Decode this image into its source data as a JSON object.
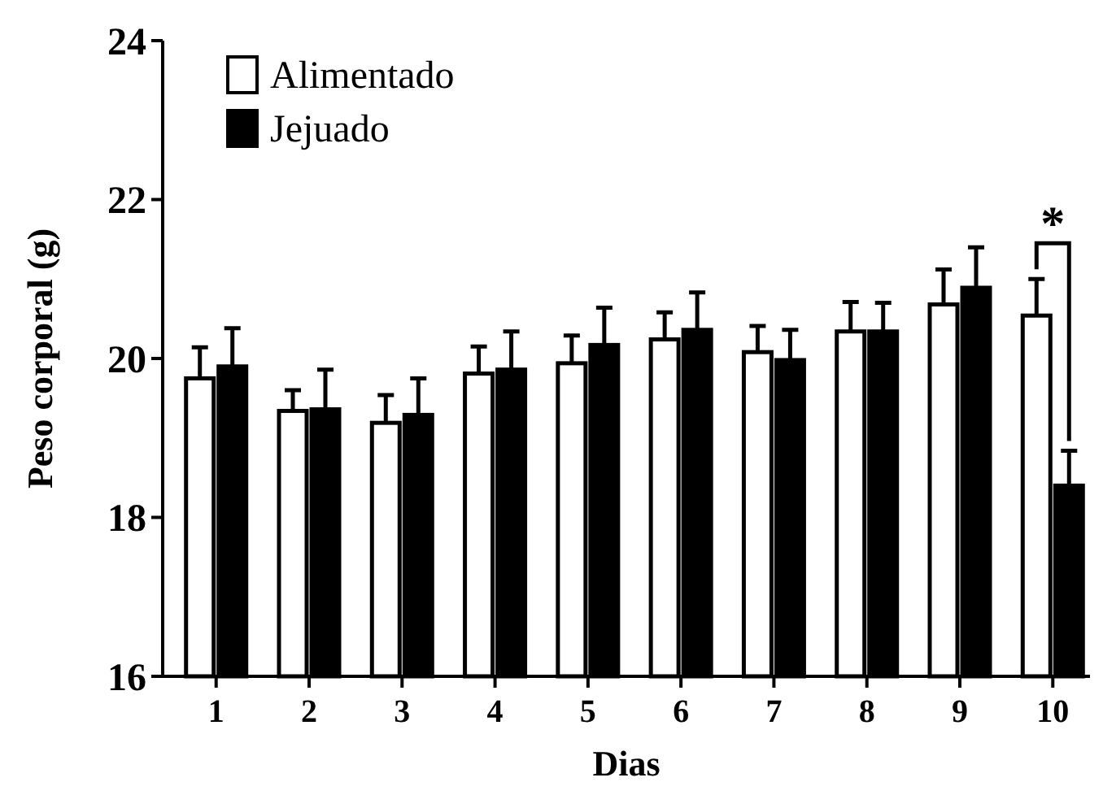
{
  "chart_data": {
    "type": "bar",
    "xlabel": "Dias",
    "ylabel": "Peso corporal (g)",
    "categories": [
      "1",
      "2",
      "3",
      "4",
      "5",
      "6",
      "7",
      "8",
      "9",
      "10"
    ],
    "series": [
      {
        "name": "Alimentado",
        "color": "#ffffff",
        "values": [
          19.75,
          19.34,
          19.19,
          19.81,
          19.94,
          20.24,
          20.08,
          20.34,
          20.68,
          20.54
        ],
        "errors": [
          [
            19.75,
            20.14
          ],
          [
            19.34,
            19.6
          ],
          [
            19.19,
            19.54
          ],
          [
            19.81,
            20.15
          ],
          [
            19.94,
            20.29
          ],
          [
            20.24,
            20.58
          ],
          [
            20.08,
            20.41
          ],
          [
            20.34,
            20.71
          ],
          [
            20.68,
            21.12
          ],
          [
            20.54,
            21.0
          ]
        ]
      },
      {
        "name": "Jejuado",
        "color": "#000000",
        "values": [
          19.9,
          19.36,
          19.29,
          19.86,
          20.17,
          20.36,
          19.98,
          20.34,
          20.89,
          18.4
        ],
        "errors": [
          [
            19.9,
            20.38
          ],
          [
            19.36,
            19.86
          ],
          [
            19.29,
            19.75
          ],
          [
            19.86,
            20.34
          ],
          [
            20.17,
            20.64
          ],
          [
            20.36,
            20.83
          ],
          [
            19.98,
            20.36
          ],
          [
            20.34,
            20.7
          ],
          [
            20.89,
            21.4
          ],
          [
            18.4,
            18.84
          ]
        ]
      }
    ],
    "ylim": [
      16,
      24
    ],
    "yticks": [
      16,
      18,
      20,
      22,
      24
    ],
    "grid": false,
    "legend": "top left",
    "annotations": [
      "*"
    ]
  }
}
